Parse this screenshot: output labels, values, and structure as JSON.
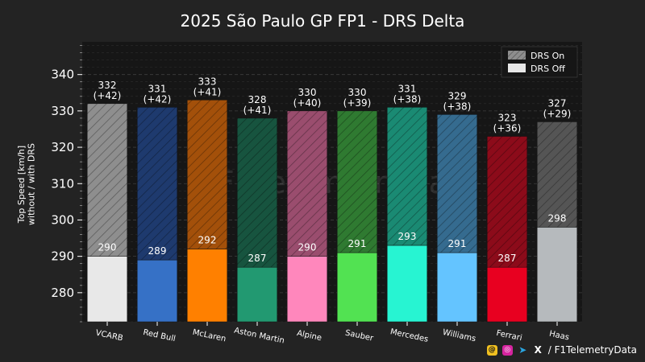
{
  "chart_data": {
    "type": "bar",
    "title": "2025 São Paulo GP FP1 - DRS Delta",
    "ylabel": "Top Speed [km/h]\nwithout / with DRS",
    "ylim": [
      272,
      349
    ],
    "yticks": [
      280,
      290,
      300,
      310,
      320,
      330,
      340
    ],
    "grid": true,
    "legend": {
      "position": "top-right",
      "entries": [
        "DRS On",
        "DRS Off"
      ]
    },
    "watermark": "@F1TelemetryData",
    "categories": [
      "VCARB",
      "Red Bull",
      "McLaren",
      "Aston Martin",
      "Alpine",
      "Sauber",
      "Mercedes",
      "Williams",
      "Ferrari",
      "Haas"
    ],
    "series": [
      {
        "name": "DRS Off",
        "values": [
          290,
          289,
          292,
          287,
          290,
          291,
          293,
          291,
          287,
          298
        ]
      },
      {
        "name": "DRS On",
        "values": [
          332,
          331,
          333,
          328,
          330,
          330,
          331,
          329,
          323,
          327
        ]
      }
    ],
    "delta_labels": [
      "(+42)",
      "(+42)",
      "(+41)",
      "(+41)",
      "(+40)",
      "(+39)",
      "(+38)",
      "(+38)",
      "(+36)",
      "(+29)"
    ],
    "colors": [
      "#e8e8e8",
      "#3671c6",
      "#ff8000",
      "#229971",
      "#ff87bc",
      "#52e252",
      "#27f4d2",
      "#64c4ff",
      "#e80020",
      "#b6babd"
    ],
    "on_colors": [
      "#8e8e8e",
      "#1e3a6e",
      "#a3500a",
      "#17543f",
      "#9a4d6e",
      "#2f7a31",
      "#1a8a73",
      "#356b8f",
      "#8c0b1a",
      "#555555"
    ]
  },
  "footer": {
    "handle": "/ F1TelemetryData"
  }
}
